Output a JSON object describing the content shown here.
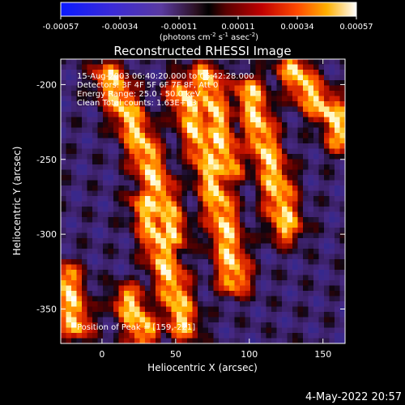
{
  "colorbar": {
    "tick_labels": [
      "-0.00057",
      "-0.00034",
      "-0.00011",
      "0.00011",
      "0.00034",
      "0.00057"
    ],
    "units_main": "(photons cm",
    "units_exp1": "-2",
    "units_mid": " s",
    "units_exp2": "-1",
    "units_tail": " asec",
    "units_exp3": "-2",
    "units_close": ")",
    "range": [
      -0.00057,
      0.00057
    ]
  },
  "annotations": [
    "15-Aug-2003 06:40:20.000 to 06:42:28.000",
    "Detectors: 3F 4F 5F 6F 7F 8F, Att 0",
    "Energy Range: 25.0 - 50.0 keV",
    "Clean    Total counts: 1.63E+03"
  ],
  "peak_label": "Position of Peak = [159,-221]",
  "date_stamp": "4-May-2022 20:57",
  "chart_data": {
    "type": "heatmap",
    "title": "Reconstructed RHESSI Image",
    "xlabel": "Heliocentric X (arcsec)",
    "ylabel": "Heliocentric Y (arcsec)",
    "xlim": [
      -28,
      165
    ],
    "ylim": [
      -373,
      -183
    ],
    "xticks": [
      0,
      50,
      100,
      150
    ],
    "yticks": [
      -200,
      -250,
      -300,
      -350
    ],
    "xtick_labels": [
      "0",
      "50",
      "100",
      "150"
    ],
    "ytick_labels": [
      "-200",
      "-250",
      "-300",
      "-350"
    ],
    "value_range": [
      -0.00057,
      0.00057
    ],
    "peak_position": [
      159,
      -221
    ],
    "bright_ridges": [
      {
        "x": [
          5,
          15,
          25,
          35,
          48
        ],
        "y": [
          -195,
          -215,
          -235,
          -262,
          -300
        ]
      },
      {
        "x": [
          30,
          38,
          48,
          55
        ],
        "y": [
          -280,
          -305,
          -335,
          -360
        ]
      },
      {
        "x": [
          55,
          62,
          70,
          75,
          82,
          90
        ],
        "y": [
          -205,
          -225,
          -245,
          -265,
          -290,
          -330
        ]
      },
      {
        "x": [
          70,
          75,
          80,
          85
        ],
        "y": [
          -195,
          -215,
          -235,
          -255
        ]
      },
      {
        "x": [
          100,
          108,
          118,
          125
        ],
        "y": [
          -205,
          -235,
          -265,
          -295
        ]
      },
      {
        "x": [
          130,
          140,
          150,
          159,
          163
        ],
        "y": [
          -190,
          -205,
          -215,
          -221,
          -235
        ]
      },
      {
        "x": [
          -25,
          -18
        ],
        "y": [
          -330,
          -360
        ]
      },
      {
        "x": [
          18,
          28
        ],
        "y": [
          -345,
          -365
        ]
      }
    ]
  }
}
